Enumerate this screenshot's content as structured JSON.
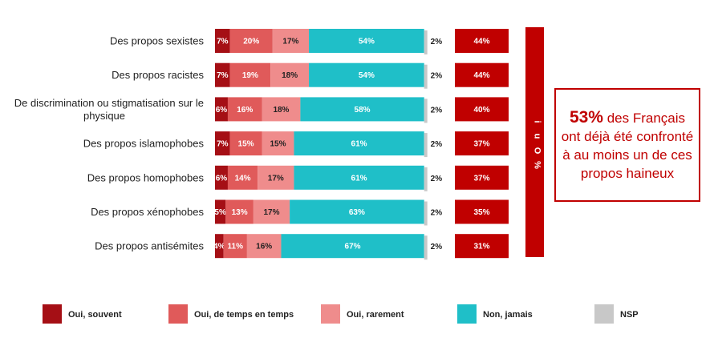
{
  "chart_data": {
    "type": "bar",
    "orientation": "horizontal",
    "stacked": true,
    "categories": [
      "Des propos sexistes",
      "Des propos racistes",
      "De discrimination ou stigmatisation sur le physique",
      "Des propos islamophobes",
      "Des propos homophobes",
      "Des propos xénophobes",
      "Des propos antisémites"
    ],
    "category_lines": [
      [
        "Des propos sexistes"
      ],
      [
        "Des propos racistes"
      ],
      [
        "De discrimination ou stigmatisation sur le",
        "physique"
      ],
      [
        "Des propos islamophobes"
      ],
      [
        "Des propos homophobes"
      ],
      [
        "Des propos xénophobes"
      ],
      [
        "Des propos antisémites"
      ]
    ],
    "series": [
      {
        "name": "Oui, souvent",
        "color": "#a50f15",
        "label_color": "#ffffff",
        "values": [
          7,
          7,
          6,
          7,
          6,
          5,
          4
        ]
      },
      {
        "name": "Oui, de temps en temps",
        "color": "#e05a5a",
        "label_color": "#ffffff",
        "values": [
          20,
          19,
          16,
          15,
          14,
          13,
          11
        ]
      },
      {
        "name": "Oui, rarement",
        "color": "#ef8c8c",
        "label_color": "#222222",
        "values": [
          17,
          18,
          18,
          15,
          17,
          17,
          16
        ]
      },
      {
        "name": "Non, jamais",
        "color": "#1fbfc8",
        "label_color": "#ffffff",
        "values": [
          54,
          54,
          58,
          61,
          61,
          63,
          67
        ]
      },
      {
        "name": "NSP",
        "color": "#c8c8c8",
        "label_color": "#222222",
        "values": [
          2,
          2,
          2,
          2,
          2,
          2,
          2
        ]
      }
    ],
    "value_suffix": "%",
    "oui_total": {
      "header": "% Oui",
      "color": "#c00000",
      "values": [
        44,
        44,
        40,
        37,
        37,
        35,
        31
      ]
    },
    "legend_position": "bottom",
    "xlim": [
      0,
      100
    ]
  },
  "callout": {
    "highlight": "53%",
    "text": " des Français ont déjà été confronté à au moins un de ces propos haineux"
  }
}
